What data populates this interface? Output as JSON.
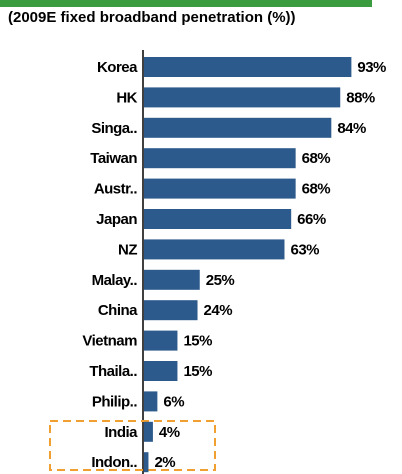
{
  "chart_data": {
    "type": "hbar",
    "title": "(2009E fixed broadband penetration (%))",
    "categories": [
      "Korea",
      "HK",
      "Singa..",
      "Taiwan",
      "Austr..",
      "Japan",
      "NZ",
      "Malay..",
      "China",
      "Vietnam",
      "Thaila..",
      "Philip..",
      "India",
      "Indon.."
    ],
    "values": [
      93,
      88,
      84,
      68,
      68,
      66,
      63,
      25,
      24,
      15,
      15,
      6,
      4,
      2
    ],
    "value_labels": [
      "93%",
      "88%",
      "84%",
      "68%",
      "68%",
      "66%",
      "63%",
      "25%",
      "24%",
      "15%",
      "15%",
      "6%",
      "4%",
      "2%"
    ],
    "color": "#2d5a8c"
  }
}
